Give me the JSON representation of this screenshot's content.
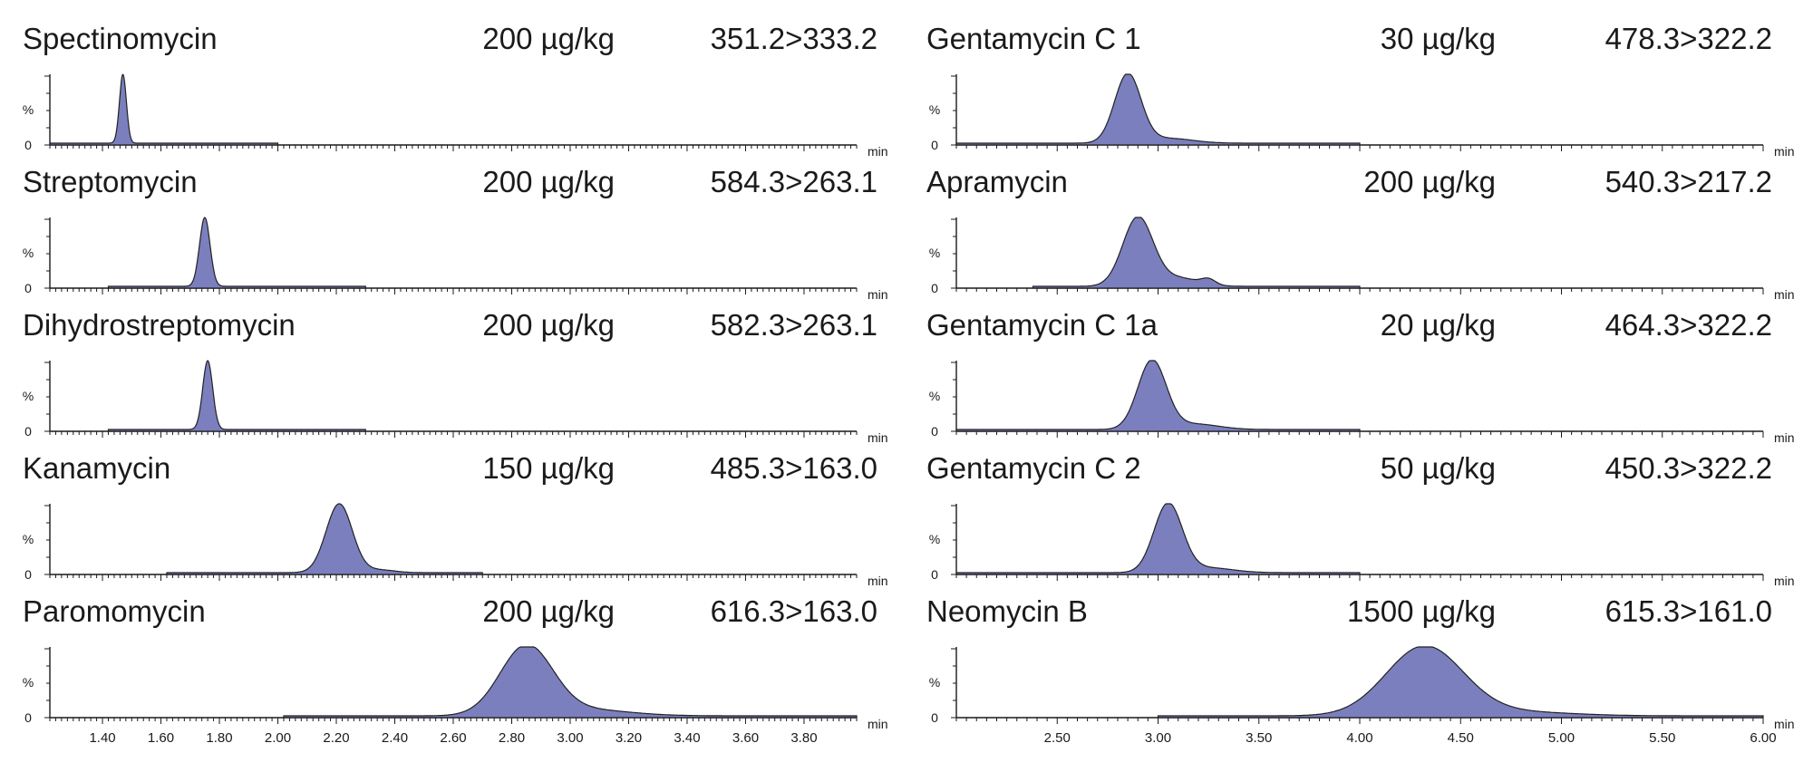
{
  "axis_unit": "min",
  "percent_label": "%",
  "zero_label": "0",
  "colors": {
    "peak_fill": "#7b7fbe",
    "line": "#222222"
  },
  "chart_data": {
    "type": "area",
    "columns": [
      {
        "x_range": [
          1.22,
          3.98
        ],
        "tick_labels": [
          "1.40",
          "1.60",
          "1.80",
          "2.00",
          "2.20",
          "2.40",
          "2.60",
          "2.80",
          "3.00",
          "3.20",
          "3.40",
          "3.60",
          "3.80"
        ],
        "minor_step": 0.02,
        "panels": [
          {
            "name": "Spectinomycin",
            "concentration": "200 µg/kg",
            "transition": "351.2>333.2",
            "trace_range": [
              1.22,
              2.0
            ],
            "peaks": [
              {
                "center": 1.47,
                "width": 0.012,
                "height": 1.0
              }
            ]
          },
          {
            "name": "Streptomycin",
            "concentration": "200 µg/kg",
            "transition": "584.3>263.1",
            "trace_range": [
              1.42,
              2.3
            ],
            "peaks": [
              {
                "center": 1.75,
                "width": 0.018,
                "height": 1.0
              }
            ]
          },
          {
            "name": "Dihydrostreptomycin",
            "concentration": "200 µg/kg",
            "transition": "582.3>263.1",
            "trace_range": [
              1.42,
              2.3
            ],
            "peaks": [
              {
                "center": 1.76,
                "width": 0.017,
                "height": 1.0
              }
            ]
          },
          {
            "name": "Kanamycin",
            "concentration": "150 µg/kg",
            "transition": "485.3>163.0",
            "trace_range": [
              1.62,
              2.7
            ],
            "peaks": [
              {
                "center": 2.21,
                "width": 0.045,
                "height": 1.0
              },
              {
                "center": 2.35,
                "width": 0.05,
                "height": 0.04
              }
            ]
          },
          {
            "name": "Paromomycin",
            "concentration": "200 µg/kg",
            "transition": "616.3>163.0",
            "trace_range": [
              2.02,
              3.98
            ],
            "peaks": [
              {
                "center": 2.85,
                "width": 0.09,
                "height": 1.0
              },
              {
                "center": 3.05,
                "width": 0.15,
                "height": 0.09
              }
            ]
          }
        ]
      },
      {
        "x_range": [
          2.0,
          6.0
        ],
        "tick_labels": [
          "2.50",
          "3.00",
          "3.50",
          "4.00",
          "4.50",
          "5.00",
          "5.50",
          "6.00"
        ],
        "minor_step": 0.05,
        "panels": [
          {
            "name": "Gentamycin C 1",
            "concentration": "30 µg/kg",
            "transition": "478.3>322.2",
            "trace_range": [
              2.0,
              4.0
            ],
            "peaks": [
              {
                "center": 2.85,
                "width": 0.065,
                "height": 1.0
              },
              {
                "center": 3.05,
                "width": 0.12,
                "height": 0.07
              }
            ]
          },
          {
            "name": "Apramycin",
            "concentration": "200 µg/kg",
            "transition": "540.3>217.2",
            "trace_range": [
              2.38,
              4.0
            ],
            "peaks": [
              {
                "center": 2.9,
                "width": 0.075,
                "height": 1.0
              },
              {
                "center": 3.1,
                "width": 0.1,
                "height": 0.12
              },
              {
                "center": 3.25,
                "width": 0.035,
                "height": 0.08
              }
            ]
          },
          {
            "name": "Gentamycin C 1a",
            "concentration": "20 µg/kg",
            "transition": "464.3>322.2",
            "trace_range": [
              2.0,
              4.0
            ],
            "peaks": [
              {
                "center": 2.97,
                "width": 0.07,
                "height": 1.0
              },
              {
                "center": 3.18,
                "width": 0.12,
                "height": 0.08
              }
            ]
          },
          {
            "name": "Gentamycin C 2",
            "concentration": "50 µg/kg",
            "transition": "450.3>322.2",
            "trace_range": [
              2.0,
              4.0
            ],
            "peaks": [
              {
                "center": 3.05,
                "width": 0.07,
                "height": 1.0
              },
              {
                "center": 3.25,
                "width": 0.12,
                "height": 0.07
              }
            ]
          },
          {
            "name": "Neomycin B",
            "concentration": "1500 µg/kg",
            "transition": "615.3>161.0",
            "trace_range": [
              3.0,
              6.0
            ],
            "peaks": [
              {
                "center": 4.32,
                "width": 0.19,
                "height": 1.0
              },
              {
                "center": 4.75,
                "width": 0.28,
                "height": 0.06
              }
            ]
          }
        ]
      }
    ]
  }
}
